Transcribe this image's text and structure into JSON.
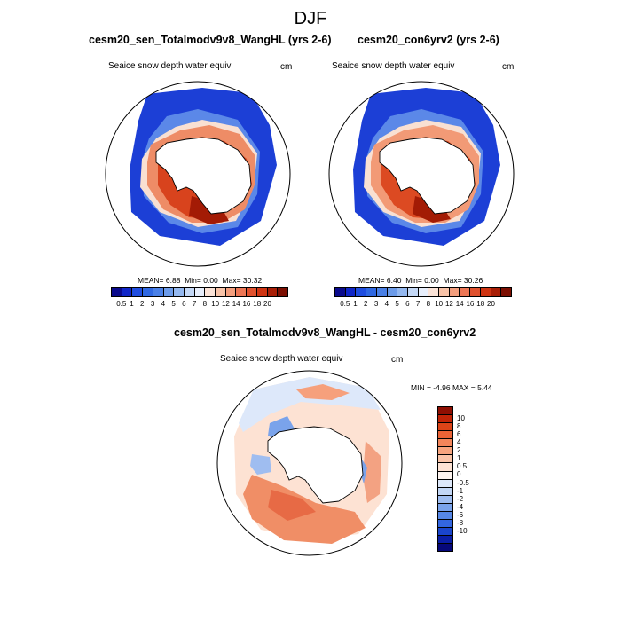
{
  "figure": {
    "title": "DJF",
    "difference_title": "cesm20_sen_Totalmodv9v8_WangHL - cesm20_con6yrv2"
  },
  "panels": [
    {
      "title": "cesm20_sen_Totalmodv9v8_WangHL (yrs 2-6)",
      "field": "Seaice snow depth water equiv",
      "units": "cm",
      "stats": {
        "mean_label": "MEAN=",
        "mean": "6.88",
        "min_label": "Min=",
        "min": "0.00",
        "max_label": "Max=",
        "max": "30.32"
      }
    },
    {
      "title": "cesm20_con6yrv2 (yrs 2-6)",
      "field": "Seaice snow depth water equiv",
      "units": "cm",
      "stats": {
        "mean_label": "MEAN=",
        "mean": "6.40",
        "min_label": "Min=",
        "min": "0.00",
        "max_label": "Max=",
        "max": "30.26"
      }
    },
    {
      "field": "Seaice snow depth water equiv",
      "units": "cm",
      "stats_text": "MIN =  -4.96 MAX =   5.44"
    }
  ],
  "colorbar_main": {
    "labels": [
      "0.5",
      "1",
      "2",
      "3",
      "4",
      "5",
      "6",
      "7",
      "8",
      "10",
      "12",
      "14",
      "16",
      "18",
      "20"
    ],
    "colors": [
      "#0a0a8c",
      "#1026c8",
      "#1f4de0",
      "#2f68e2",
      "#4a80e6",
      "#6c9be9",
      "#94b8ef",
      "#c4d8f6",
      "#e7eefb",
      "#fbe3d7",
      "#f8c3a8",
      "#f39e7d",
      "#ec7655",
      "#e0512e",
      "#cf3412",
      "#a81e06",
      "#7c0f02"
    ]
  },
  "colorbar_diff": {
    "labels": [
      "10",
      "8",
      "6",
      "4",
      "2",
      "1",
      "0.5",
      "0",
      "-0.5",
      "-1",
      "-2",
      "-4",
      "-6",
      "-8",
      "-10"
    ],
    "colors": [
      "#8f0f02",
      "#c12407",
      "#dc4418",
      "#ea6336",
      "#f3855a",
      "#f7a47e",
      "#fac4a8",
      "#fde2d3",
      "#fdf4ef",
      "#dde8fa",
      "#c2d6f5",
      "#9fbdf0",
      "#7aa3eb",
      "#5687e6",
      "#3366e0",
      "#1a45cc",
      "#0a1ea6",
      "#06087a"
    ]
  }
}
